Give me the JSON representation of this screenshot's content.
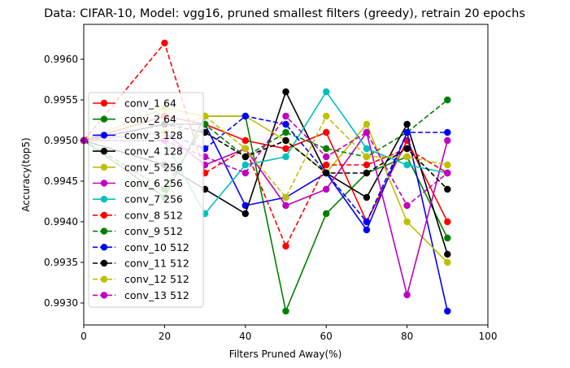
{
  "chart_data": {
    "type": "line",
    "title": "Data: CIFAR-10, Model: vgg16, pruned smallest filters (greedy), retrain 20 epochs",
    "xlabel": "Filters Pruned Away(%)",
    "ylabel": "Accuracy(top5)",
    "xlim": [
      0,
      100
    ],
    "ylim": [
      0.99273,
      0.99643
    ],
    "xticks": [
      0,
      20,
      40,
      60,
      80,
      100
    ],
    "yticks": [
      0.993,
      0.9935,
      0.994,
      0.9945,
      0.995,
      0.9955,
      0.996
    ],
    "ytick_labels": [
      "0.9930",
      "0.9935",
      "0.9940",
      "0.9945",
      "0.9950",
      "0.9955",
      "0.9960"
    ],
    "grid": false,
    "legend_position": "left",
    "x": [
      0,
      20,
      30,
      40,
      50,
      60,
      70,
      80,
      90
    ],
    "series": [
      {
        "name": "conv_1 64",
        "color": "#ff0000",
        "dash": "solid",
        "values": [
          0.995,
          0.9953,
          0.9952,
          0.995,
          0.9949,
          0.9951,
          0.994,
          0.995,
          0.994
        ]
      },
      {
        "name": "conv_2 64",
        "color": "#008000",
        "dash": "solid",
        "values": [
          0.995,
          0.9943,
          0.9953,
          0.9953,
          0.9929,
          0.9941,
          0.9946,
          0.9948,
          0.9938
        ]
      },
      {
        "name": "conv_3 128",
        "color": "#0000ff",
        "dash": "solid",
        "values": [
          0.995,
          0.9952,
          0.9952,
          0.9942,
          0.9943,
          0.9946,
          0.9939,
          0.9951,
          0.9929
        ]
      },
      {
        "name": "conv_4 128",
        "color": "#000000",
        "dash": "solid",
        "values": [
          0.995,
          0.9947,
          0.9944,
          0.9941,
          0.9956,
          0.9946,
          0.9943,
          0.9952,
          0.9936
        ]
      },
      {
        "name": "conv_5 256",
        "color": "#bfbf00",
        "dash": "solid",
        "values": [
          0.995,
          0.9954,
          0.9953,
          0.9953,
          0.995,
          0.9946,
          0.9952,
          0.994,
          0.9935
        ]
      },
      {
        "name": "conv_6 256",
        "color": "#bf00bf",
        "dash": "solid",
        "values": [
          0.995,
          0.9951,
          0.9947,
          0.9949,
          0.9942,
          0.9944,
          0.9951,
          0.9931,
          0.995
        ]
      },
      {
        "name": "conv_7 256",
        "color": "#00bfbf",
        "dash": "solid",
        "values": [
          0.995,
          0.995,
          0.9941,
          0.9947,
          0.9948,
          0.9956,
          0.9949,
          0.9947,
          0.9946
        ]
      },
      {
        "name": "conv_8 512",
        "color": "#ff0000",
        "dash": "dashed",
        "values": [
          0.995,
          0.9962,
          0.9946,
          0.9949,
          0.9937,
          0.9947,
          0.9947,
          0.9949,
          0.9946
        ]
      },
      {
        "name": "conv_9 512",
        "color": "#008000",
        "dash": "dashed",
        "values": [
          0.995,
          0.9944,
          0.9952,
          0.9948,
          0.9951,
          0.9949,
          0.9948,
          0.9951,
          0.9955
        ]
      },
      {
        "name": "conv_10 512",
        "color": "#0000ff",
        "dash": "dashed",
        "values": [
          0.995,
          0.9951,
          0.9949,
          0.9953,
          0.9952,
          0.9946,
          0.994,
          0.9951,
          0.9951
        ]
      },
      {
        "name": "conv_11 512",
        "color": "#000000",
        "dash": "dashed",
        "values": [
          0.995,
          0.9952,
          0.9951,
          0.9948,
          0.995,
          0.9946,
          0.9946,
          0.9949,
          0.9944
        ]
      },
      {
        "name": "conv_12 512",
        "color": "#bfbf00",
        "dash": "dashed",
        "values": [
          0.995,
          0.9951,
          0.9953,
          0.9949,
          0.9943,
          0.9953,
          0.9948,
          0.9948,
          0.9947
        ]
      },
      {
        "name": "conv_13 512",
        "color": "#bf00bf",
        "dash": "dashed",
        "values": [
          0.995,
          0.995,
          0.9948,
          0.9946,
          0.9953,
          0.9948,
          0.9951,
          0.9942,
          0.9946
        ]
      }
    ]
  }
}
